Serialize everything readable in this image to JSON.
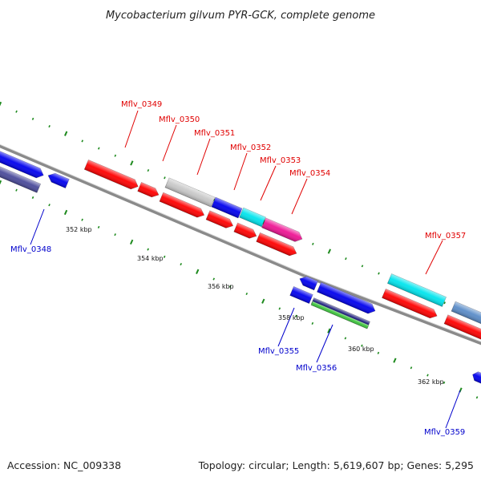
{
  "title": "Mycobacterium gilvum PYR-GCK, complete genome",
  "footer": {
    "accession": "Accession: NC_009338",
    "topology": "Topology: circular; Length: 5,619,607 bp; Genes: 5,295"
  },
  "colors": {
    "red": "#ff0000",
    "blue": "#0000ee",
    "navy": "#1a1a7a",
    "slate": "#4a4a9a",
    "gray": "#c8c8c8",
    "cyan": "#00e5ee",
    "magenta": "#ee1493",
    "green": "#3cc43c",
    "steelblue": "#5a8cc8",
    "tick": "#1e8a1e",
    "backbone": "#8a8a8a"
  },
  "scale_labels": [
    "352 kbp",
    "354 kbp",
    "356 kbp",
    "358 kbp",
    "360 kbp",
    "362 kbp"
  ],
  "gene_labels_red": [
    "Mflv_0349",
    "Mflv_0350",
    "Mflv_0351",
    "Mflv_0352",
    "Mflv_0353",
    "Mflv_0354",
    "Mflv_0357"
  ],
  "gene_labels_blue": [
    "Mflv_0348",
    "Mflv_0355",
    "Mflv_0356",
    "Mflv_0359"
  ]
}
